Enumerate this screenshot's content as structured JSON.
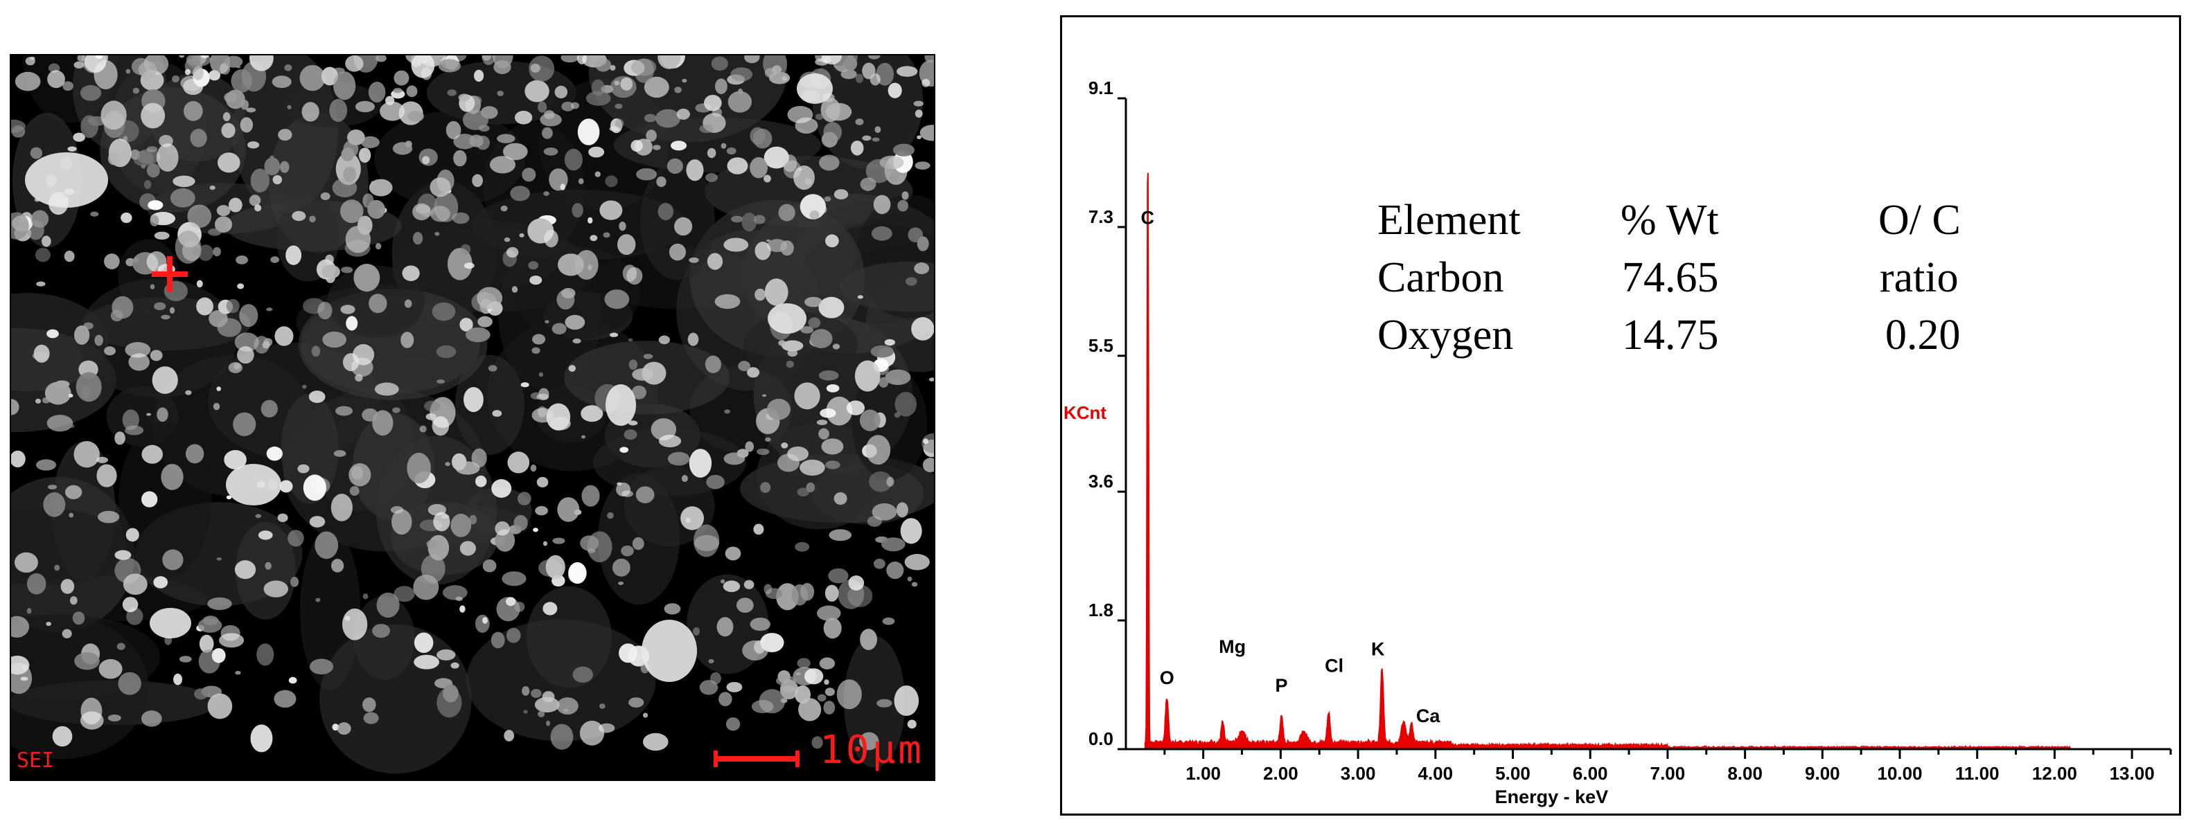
{
  "sem_image": {
    "mode_label": "SEI",
    "scale_label": "10μm"
  },
  "composition_table": {
    "headers": [
      "Element",
      "% Wt",
      "O/ C"
    ],
    "rows": [
      [
        "Carbon",
        "74.65",
        "ratio"
      ],
      [
        "Oxygen",
        "14.75",
        "0.20"
      ]
    ]
  },
  "chart_data": {
    "type": "line",
    "xlabel": "Energy - keV",
    "ylabel": "KCnt",
    "x_ticks": [
      "1.00",
      "2.00",
      "3.00",
      "4.00",
      "5.00",
      "6.00",
      "7.00",
      "8.00",
      "9.00",
      "10.00",
      "11.00",
      "12.00",
      "13.00"
    ],
    "y_ticks": [
      "0.0",
      "1.8",
      "3.6",
      "5.5",
      "7.3",
      "9.1"
    ],
    "xlim": [
      0,
      13.5
    ],
    "ylim": [
      0,
      9.1
    ],
    "color": "#e60000",
    "peaks": [
      {
        "label": "C",
        "x": 0.28,
        "y": 6.8
      },
      {
        "label": "O",
        "x": 0.53,
        "y": 0.62
      },
      {
        "label": "Mg",
        "x": 1.25,
        "y": 0.28
      },
      {
        "label": "P",
        "x": 2.01,
        "y": 0.36
      },
      {
        "label": "Cl",
        "x": 2.62,
        "y": 0.42
      },
      {
        "label": "K",
        "x": 3.31,
        "y": 1.02
      },
      {
        "label": "Ca",
        "x": 3.69,
        "y": 0.26
      }
    ]
  }
}
